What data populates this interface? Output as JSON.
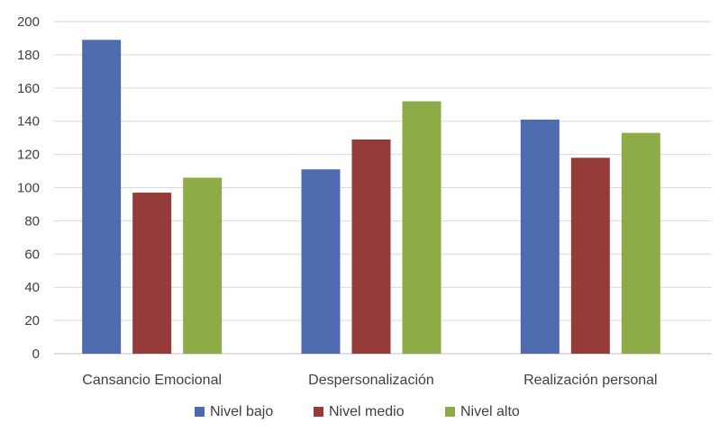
{
  "chart_data": {
    "type": "bar",
    "title": "",
    "xlabel": "",
    "ylabel": "",
    "categories": [
      "Cansancio Emocional",
      "Despersonalización",
      "Realización personal"
    ],
    "series": [
      {
        "name": "Nivel bajo",
        "color": "#4F6BAF",
        "values": [
          189,
          111,
          141
        ]
      },
      {
        "name": "Nivel medio",
        "color": "#953B39",
        "values": [
          97,
          129,
          118
        ]
      },
      {
        "name": "Nivel alto",
        "color": "#8DAC47",
        "values": [
          106,
          152,
          133
        ]
      }
    ],
    "ylim": [
      0,
      200
    ],
    "yticks": [
      0,
      20,
      40,
      60,
      80,
      100,
      120,
      140,
      160,
      180,
      200
    ],
    "grid": true,
    "legend_position": "bottom"
  }
}
